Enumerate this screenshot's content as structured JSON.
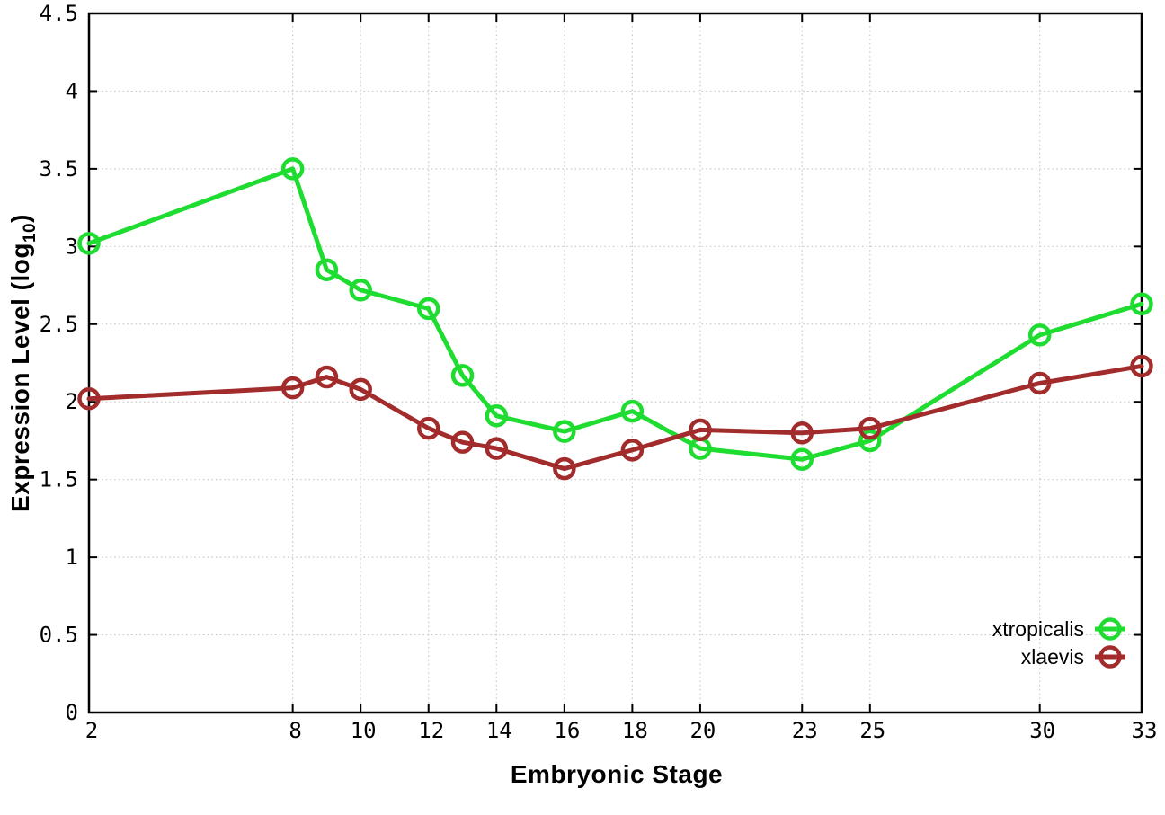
{
  "figure": {
    "background": "#ffffff",
    "axis_color": "#000000",
    "grid_color": "#c8c8c8"
  },
  "chart_data": {
    "type": "line",
    "title": "",
    "xlabel": "Embryonic Stage",
    "ylabel": "Expression Level (log10)",
    "ylabel_parts": {
      "prefix": "Expression Level (log",
      "sub": "10",
      "suffix": ")"
    },
    "x": [
      2,
      8,
      9,
      10,
      12,
      13,
      14,
      16,
      18,
      20,
      23,
      25,
      30,
      33
    ],
    "series": [
      {
        "name": "xtropicalis",
        "color": "#1edc30",
        "values": [
          3.02,
          3.5,
          2.85,
          2.72,
          2.6,
          2.17,
          1.91,
          1.81,
          1.94,
          1.7,
          1.63,
          1.75,
          2.43,
          2.63
        ]
      },
      {
        "name": "xlaevis",
        "color": "#a22c2c",
        "values": [
          2.02,
          2.09,
          2.16,
          2.08,
          1.83,
          1.74,
          1.7,
          1.57,
          1.69,
          1.82,
          1.8,
          1.83,
          2.12,
          2.23
        ]
      }
    ],
    "xlim": [
      2,
      33
    ],
    "ylim": [
      0,
      4.5
    ],
    "xticks": [
      2,
      8,
      10,
      12,
      14,
      16,
      18,
      20,
      23,
      25,
      30,
      33
    ],
    "yticks": [
      0,
      0.5,
      1,
      1.5,
      2,
      2.5,
      3,
      3.5,
      4,
      4.5
    ],
    "grid": true,
    "grid_style": "dotted",
    "marker": "open-circle",
    "legend_position": "inside-right-above-0.5"
  }
}
